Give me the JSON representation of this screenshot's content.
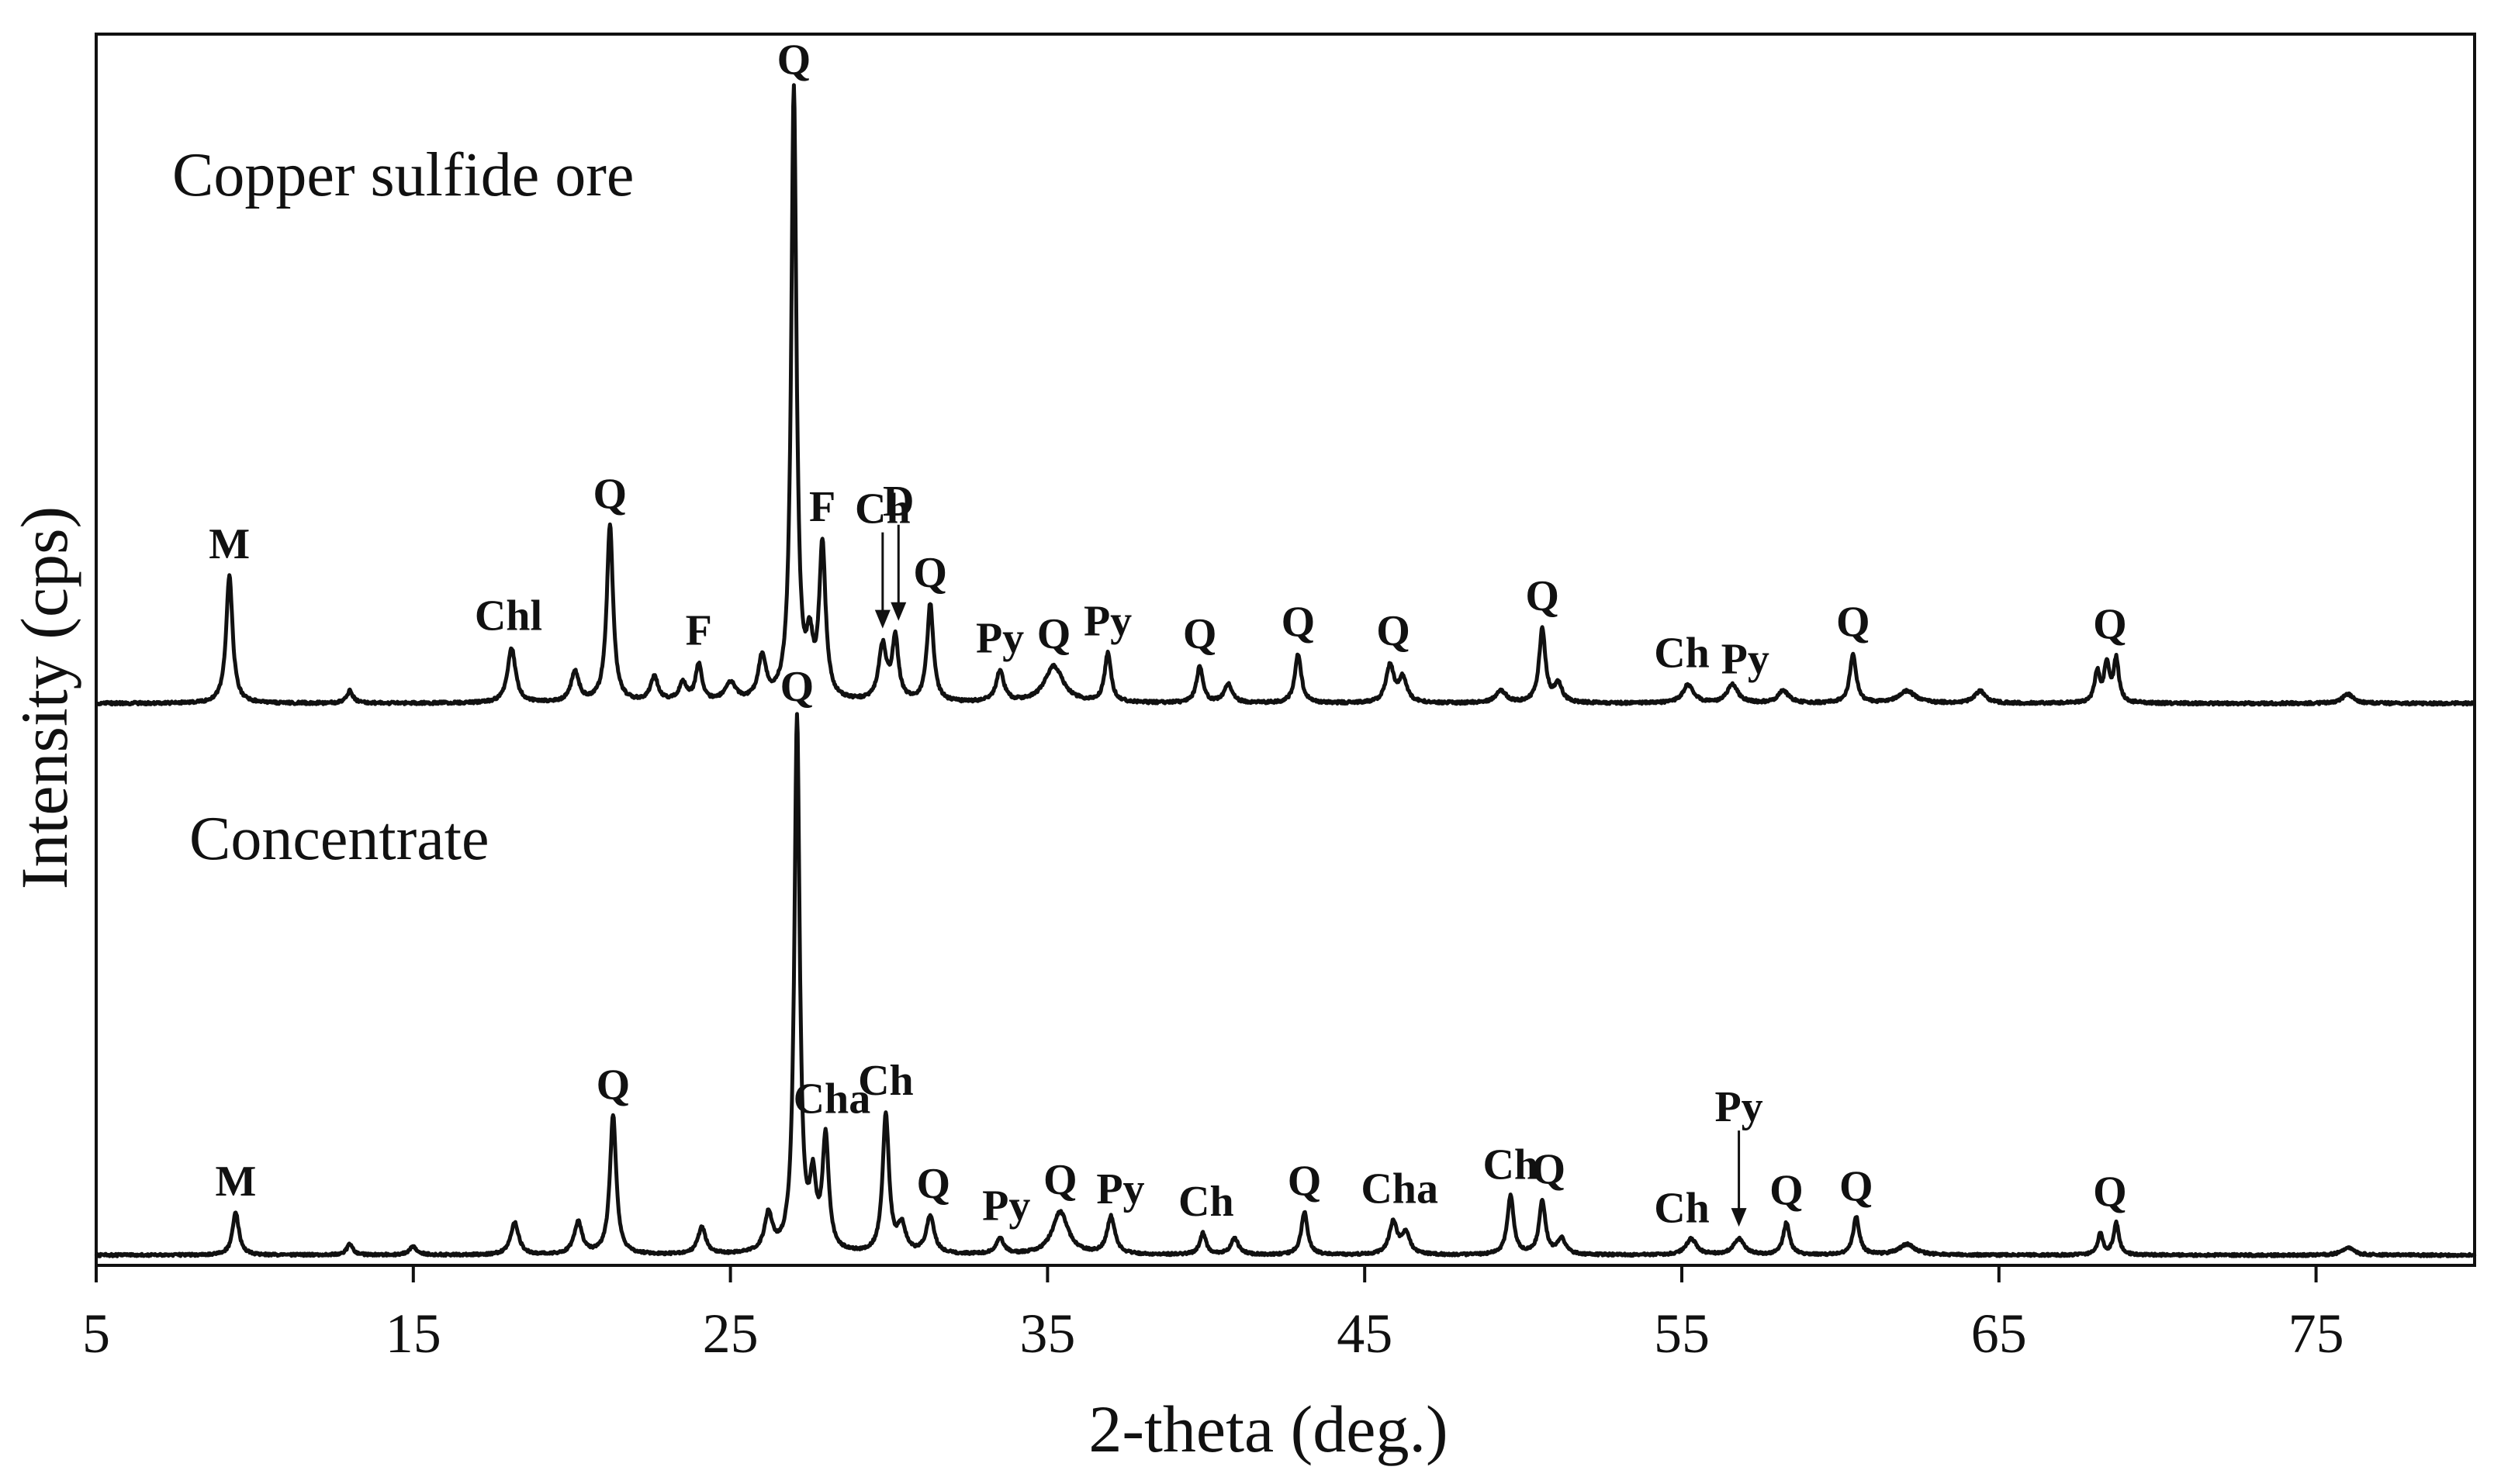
{
  "chart_data": {
    "type": "line",
    "xlabel": "2-theta (deg.)",
    "ylabel": "Intensity (cps)",
    "xlim": [
      5,
      80
    ],
    "xticks": [
      5,
      15,
      25,
      35,
      45,
      55,
      65,
      75
    ],
    "grid": false,
    "series": [
      {
        "name": "Copper sulfide ore",
        "baseline": 0.6,
        "peaks": [
          {
            "x": 9.2,
            "h": 21,
            "w": 0.12
          },
          {
            "x": 13.0,
            "h": 2,
            "w": 0.12
          },
          {
            "x": 18.1,
            "h": 9,
            "w": 0.15
          },
          {
            "x": 20.1,
            "h": 5,
            "w": 0.15
          },
          {
            "x": 21.2,
            "h": 29,
            "w": 0.12
          },
          {
            "x": 22.6,
            "h": 4,
            "w": 0.15
          },
          {
            "x": 23.5,
            "h": 3,
            "w": 0.15
          },
          {
            "x": 24.0,
            "h": 6,
            "w": 0.12
          },
          {
            "x": 25.0,
            "h": 3,
            "w": 0.2
          },
          {
            "x": 26.0,
            "h": 7,
            "w": 0.15
          },
          {
            "x": 27.0,
            "h": 100,
            "w": 0.1
          },
          {
            "x": 27.5,
            "h": 8,
            "w": 0.12
          },
          {
            "x": 27.9,
            "h": 25,
            "w": 0.12
          },
          {
            "x": 29.8,
            "h": 9,
            "w": 0.15
          },
          {
            "x": 30.2,
            "h": 10,
            "w": 0.12
          },
          {
            "x": 31.3,
            "h": 16,
            "w": 0.12
          },
          {
            "x": 33.5,
            "h": 5,
            "w": 0.15
          },
          {
            "x": 35.2,
            "h": 6,
            "w": 0.35
          },
          {
            "x": 36.9,
            "h": 8,
            "w": 0.12
          },
          {
            "x": 39.8,
            "h": 6,
            "w": 0.12
          },
          {
            "x": 40.7,
            "h": 3,
            "w": 0.15
          },
          {
            "x": 42.9,
            "h": 8,
            "w": 0.12
          },
          {
            "x": 45.8,
            "h": 6,
            "w": 0.15
          },
          {
            "x": 46.2,
            "h": 4,
            "w": 0.15
          },
          {
            "x": 49.3,
            "h": 2,
            "w": 0.2
          },
          {
            "x": 50.6,
            "h": 12,
            "w": 0.12
          },
          {
            "x": 51.1,
            "h": 3,
            "w": 0.15
          },
          {
            "x": 55.2,
            "h": 3,
            "w": 0.2
          },
          {
            "x": 56.6,
            "h": 3,
            "w": 0.2
          },
          {
            "x": 58.2,
            "h": 2,
            "w": 0.2
          },
          {
            "x": 60.4,
            "h": 8,
            "w": 0.12
          },
          {
            "x": 62.1,
            "h": 2,
            "w": 0.3
          },
          {
            "x": 64.4,
            "h": 2,
            "w": 0.2
          },
          {
            "x": 68.1,
            "h": 5,
            "w": 0.1
          },
          {
            "x": 68.4,
            "h": 6,
            "w": 0.1
          },
          {
            "x": 68.7,
            "h": 7,
            "w": 0.1
          },
          {
            "x": 76.0,
            "h": 1.5,
            "w": 0.2
          }
        ]
      },
      {
        "name": "Concentrate",
        "baseline": 0.6,
        "peaks": [
          {
            "x": 9.4,
            "h": 8,
            "w": 0.12
          },
          {
            "x": 13.0,
            "h": 2,
            "w": 0.12
          },
          {
            "x": 15.0,
            "h": 1.5,
            "w": 0.15
          },
          {
            "x": 18.2,
            "h": 6,
            "w": 0.15
          },
          {
            "x": 20.2,
            "h": 6,
            "w": 0.15
          },
          {
            "x": 21.3,
            "h": 26,
            "w": 0.12
          },
          {
            "x": 24.1,
            "h": 5,
            "w": 0.15
          },
          {
            "x": 26.2,
            "h": 7,
            "w": 0.15
          },
          {
            "x": 27.1,
            "h": 100,
            "w": 0.1
          },
          {
            "x": 27.6,
            "h": 12,
            "w": 0.12
          },
          {
            "x": 28.0,
            "h": 21,
            "w": 0.12
          },
          {
            "x": 29.9,
            "h": 26,
            "w": 0.12
          },
          {
            "x": 30.4,
            "h": 5,
            "w": 0.15
          },
          {
            "x": 31.3,
            "h": 7,
            "w": 0.15
          },
          {
            "x": 33.5,
            "h": 3,
            "w": 0.15
          },
          {
            "x": 35.4,
            "h": 8,
            "w": 0.3
          },
          {
            "x": 37.0,
            "h": 7,
            "w": 0.15
          },
          {
            "x": 39.9,
            "h": 4,
            "w": 0.12
          },
          {
            "x": 40.9,
            "h": 3,
            "w": 0.15
          },
          {
            "x": 43.1,
            "h": 8,
            "w": 0.12
          },
          {
            "x": 45.9,
            "h": 6,
            "w": 0.15
          },
          {
            "x": 46.3,
            "h": 4,
            "w": 0.15
          },
          {
            "x": 49.6,
            "h": 11,
            "w": 0.12
          },
          {
            "x": 50.6,
            "h": 10,
            "w": 0.12
          },
          {
            "x": 51.2,
            "h": 3,
            "w": 0.15
          },
          {
            "x": 55.3,
            "h": 3,
            "w": 0.2
          },
          {
            "x": 56.8,
            "h": 3,
            "w": 0.2
          },
          {
            "x": 58.3,
            "h": 6,
            "w": 0.12
          },
          {
            "x": 60.5,
            "h": 7,
            "w": 0.12
          },
          {
            "x": 62.1,
            "h": 2,
            "w": 0.3
          },
          {
            "x": 68.2,
            "h": 4,
            "w": 0.1
          },
          {
            "x": 68.7,
            "h": 6,
            "w": 0.1
          },
          {
            "x": 76.0,
            "h": 1.5,
            "w": 0.2
          }
        ]
      }
    ],
    "peak_labels": [
      {
        "series": 0,
        "text": "M",
        "x": 9.2
      },
      {
        "series": 0,
        "text": "Chl",
        "x": 18.0
      },
      {
        "series": 0,
        "text": "Q",
        "x": 21.2
      },
      {
        "series": 0,
        "text": "F",
        "x": 24.0
      },
      {
        "series": 0,
        "text": "Q",
        "x": 27.0
      },
      {
        "series": 0,
        "text": "F",
        "x": 27.9
      },
      {
        "series": 0,
        "text": "Ch",
        "x": 29.8,
        "arrow": true
      },
      {
        "series": 0,
        "text": "D",
        "x": 30.3,
        "arrow": true
      },
      {
        "series": 0,
        "text": "Q",
        "x": 31.3
      },
      {
        "series": 0,
        "text": "Py",
        "x": 33.5
      },
      {
        "series": 0,
        "text": "Q",
        "x": 35.2
      },
      {
        "series": 0,
        "text": "Py",
        "x": 36.9
      },
      {
        "series": 0,
        "text": "Q",
        "x": 39.8
      },
      {
        "series": 0,
        "text": "Q",
        "x": 42.9
      },
      {
        "series": 0,
        "text": "Q",
        "x": 45.9
      },
      {
        "series": 0,
        "text": "Q",
        "x": 50.6
      },
      {
        "series": 0,
        "text": "Ch",
        "x": 55.0
      },
      {
        "series": 0,
        "text": "Py",
        "x": 57.0
      },
      {
        "series": 0,
        "text": "Q",
        "x": 60.4
      },
      {
        "series": 0,
        "text": "Q",
        "x": 68.5
      },
      {
        "series": 1,
        "text": "M",
        "x": 9.4
      },
      {
        "series": 1,
        "text": "Q",
        "x": 21.3
      },
      {
        "series": 1,
        "text": "Q",
        "x": 27.1
      },
      {
        "series": 1,
        "text": "Cha",
        "x": 28.2
      },
      {
        "series": 1,
        "text": "Ch",
        "x": 29.9
      },
      {
        "series": 1,
        "text": "Q",
        "x": 31.4
      },
      {
        "series": 1,
        "text": "Py",
        "x": 33.7
      },
      {
        "series": 1,
        "text": "Q",
        "x": 35.4
      },
      {
        "series": 1,
        "text": "Py",
        "x": 37.3
      },
      {
        "series": 1,
        "text": "Ch",
        "x": 40.0
      },
      {
        "series": 1,
        "text": "Q",
        "x": 43.1
      },
      {
        "series": 1,
        "text": "Cha",
        "x": 46.1
      },
      {
        "series": 1,
        "text": "Ch",
        "x": 49.6
      },
      {
        "series": 1,
        "text": "Q",
        "x": 50.8
      },
      {
        "series": 1,
        "text": "Ch",
        "x": 55.0
      },
      {
        "series": 1,
        "text": "Py",
        "x": 56.8,
        "arrow": true
      },
      {
        "series": 1,
        "text": "Q",
        "x": 58.3
      },
      {
        "series": 1,
        "text": "Q",
        "x": 60.5
      },
      {
        "series": 1,
        "text": "Q",
        "x": 68.5
      }
    ]
  }
}
